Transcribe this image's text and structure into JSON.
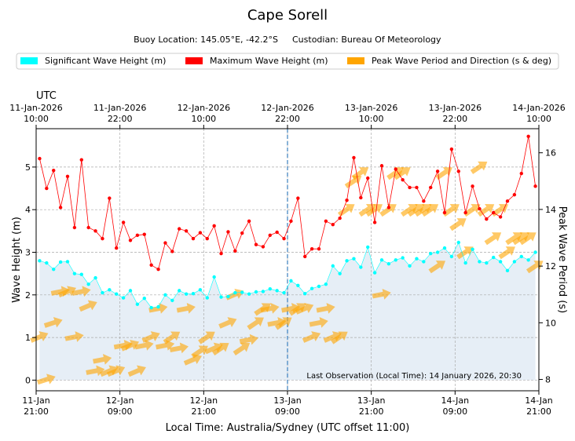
{
  "chart_data": {
    "type": "line",
    "title": "Cape Sorell",
    "subtitle_location": "Buoy Location: 145.05°E, -42.2°S",
    "subtitle_custodian": "Custodian: Bureau Of Meteorology",
    "legend": [
      {
        "label": "Significant Wave Height (m)",
        "color": "#00ffff"
      },
      {
        "label": "Maximum Wave Height (m)",
        "color": "#ff0000"
      },
      {
        "label": "Peak Wave Period and Direction (s & deg)",
        "color": "#ffa500"
      }
    ],
    "top_axis_title": "UTC",
    "top_ticks": [
      {
        "date": "11-Jan-2026",
        "time": "10:00"
      },
      {
        "date": "11-Jan-2026",
        "time": "22:00"
      },
      {
        "date": "12-Jan-2026",
        "time": "10:00"
      },
      {
        "date": "12-Jan-2026",
        "time": "22:00"
      },
      {
        "date": "13-Jan-2026",
        "time": "10:00"
      },
      {
        "date": "13-Jan-2026",
        "time": "22:00"
      },
      {
        "date": "14-Jan-2026",
        "time": "10:00"
      }
    ],
    "bottom_ticks": [
      {
        "date": "11-Jan",
        "time": "21:00"
      },
      {
        "date": "12-Jan",
        "time": "09:00"
      },
      {
        "date": "12-Jan",
        "time": "21:00"
      },
      {
        "date": "13-Jan",
        "time": "09:00"
      },
      {
        "date": "13-Jan",
        "time": "21:00"
      },
      {
        "date": "14-Jan",
        "time": "09:00"
      },
      {
        "date": "14-Jan",
        "time": "21:00"
      }
    ],
    "xlabel": "Local Time: Australia/Sydney (UTC offset 11:00)",
    "ylabel_left": "Wave Height (m)",
    "ylabel_right": "Peak Wave Period (s)",
    "x_unit": "hours after 11-Jan 21:00 local",
    "xlim": [
      0,
      72
    ],
    "ylim_left": [
      -0.25,
      5.9
    ],
    "ylim_right": [
      7.6,
      16.85
    ],
    "yticks_left": [
      0,
      1,
      2,
      3,
      4,
      5
    ],
    "yticks_right": [
      8,
      10,
      12,
      14,
      16
    ],
    "marker_line_x": 36,
    "last_observation": "Last Observation (Local Time): 14 January 2026, 20:30",
    "series": [
      {
        "name": "Significant Wave Height (m)",
        "color": "#00ffff",
        "x": [
          0.5,
          1.5,
          2.5,
          3.5,
          4.5,
          5.5,
          6.5,
          7.5,
          8.5,
          9.5,
          10.5,
          11.5,
          12.5,
          13.5,
          14.5,
          15.5,
          16.5,
          17.5,
          18.5,
          19.5,
          20.5,
          21.5,
          22.5,
          23.5,
          24.5,
          25.5,
          26.5,
          27.5,
          28.5,
          29.5,
          30.5,
          31.5,
          32.5,
          33.5,
          34.5,
          35.5,
          36.5,
          37.5,
          38.5,
          39.5,
          40.5,
          41.5,
          42.5,
          43.5,
          44.5,
          45.5,
          46.5,
          47.5,
          48.5,
          49.5,
          50.5,
          51.5,
          52.5,
          53.5,
          54.5,
          55.5,
          56.5,
          57.5,
          58.5,
          59.5,
          60.5,
          61.5,
          62.5,
          63.5,
          64.5,
          65.5,
          66.5,
          67.5,
          68.5,
          69.5,
          70.5,
          71.5
        ],
        "values": [
          2.8,
          2.75,
          2.6,
          2.77,
          2.78,
          2.5,
          2.48,
          2.25,
          2.4,
          2.05,
          2.12,
          2.02,
          1.93,
          2.1,
          1.78,
          1.92,
          1.7,
          1.72,
          2.0,
          1.87,
          2.1,
          2.02,
          2.03,
          2.12,
          1.93,
          2.42,
          1.95,
          1.96,
          2.05,
          2.06,
          2.02,
          2.07,
          2.08,
          2.14,
          2.1,
          2.05,
          2.33,
          2.22,
          2.03,
          2.15,
          2.2,
          2.25,
          2.68,
          2.5,
          2.8,
          2.85,
          2.65,
          3.12,
          2.52,
          2.82,
          2.73,
          2.82,
          2.87,
          2.68,
          2.85,
          2.78,
          2.97,
          3.0,
          3.1,
          2.9,
          3.23,
          2.75,
          3.07,
          2.78,
          2.75,
          2.88,
          2.78,
          2.57,
          2.78,
          2.9,
          2.82,
          3.0
        ]
      },
      {
        "name": "Maximum Wave Height (m)",
        "color": "#ff0000",
        "x": [
          0.5,
          1.5,
          2.5,
          3.5,
          4.5,
          5.5,
          6.5,
          7.5,
          8.5,
          9.5,
          10.5,
          11.5,
          12.5,
          13.5,
          14.5,
          15.5,
          16.5,
          17.5,
          18.5,
          19.5,
          20.5,
          21.5,
          22.5,
          23.5,
          24.5,
          25.5,
          26.5,
          27.5,
          28.5,
          29.5,
          30.5,
          31.5,
          32.5,
          33.5,
          34.5,
          35.5,
          36.5,
          37.5,
          38.5,
          39.5,
          40.5,
          41.5,
          42.5,
          43.5,
          44.5,
          45.5,
          46.5,
          47.5,
          48.5,
          49.5,
          50.5,
          51.5,
          52.5,
          53.5,
          54.5,
          55.5,
          56.5,
          57.5,
          58.5,
          59.5,
          60.5,
          61.5,
          62.5,
          63.5,
          64.5,
          65.5,
          66.5,
          67.5,
          68.5,
          69.5,
          70.5,
          71.5
        ],
        "values": [
          5.2,
          4.5,
          4.92,
          4.05,
          4.78,
          3.58,
          5.17,
          3.58,
          3.5,
          3.32,
          4.27,
          3.1,
          3.7,
          3.28,
          3.4,
          3.42,
          2.7,
          2.6,
          3.22,
          3.02,
          3.55,
          3.5,
          3.32,
          3.46,
          3.32,
          3.62,
          2.97,
          3.48,
          3.03,
          3.45,
          3.73,
          3.18,
          3.13,
          3.4,
          3.47,
          3.32,
          3.73,
          4.27,
          2.9,
          3.08,
          3.08,
          3.73,
          3.65,
          3.8,
          4.22,
          5.22,
          4.28,
          4.74,
          3.7,
          5.03,
          4.05,
          4.95,
          4.7,
          4.52,
          4.52,
          4.2,
          4.52,
          4.9,
          3.93,
          5.42,
          4.9,
          3.93,
          4.55,
          4.02,
          3.78,
          3.93,
          3.83,
          4.2,
          4.35,
          4.85,
          5.72,
          4.55
        ]
      }
    ],
    "peak_period_direction": {
      "name": "Peak Wave Period and Direction (s & deg)",
      "color": "#ffa500",
      "x": [
        0.5,
        1.5,
        2.5,
        3.5,
        4.5,
        5.5,
        6.5,
        7.5,
        8.5,
        9.5,
        10.5,
        11.5,
        12.5,
        13.5,
        14.5,
        15.5,
        16.5,
        17.5,
        18.5,
        19.5,
        20.5,
        21.5,
        22.5,
        23.5,
        24.5,
        25.5,
        26.5,
        27.5,
        28.5,
        29.5,
        30.5,
        31.5,
        32.5,
        33.5,
        34.5,
        35.5,
        36.5,
        37.5,
        38.5,
        39.5,
        40.5,
        41.5,
        42.5,
        43.5,
        44.5,
        45.5,
        46.5,
        47.5,
        48.5,
        49.5,
        50.5,
        51.5,
        52.5,
        53.5,
        54.5,
        55.5,
        56.5,
        57.5,
        58.5,
        59.5,
        60.5,
        61.5,
        62.5,
        63.5,
        64.5,
        65.5,
        66.5,
        67.5,
        68.5,
        69.5,
        70.5,
        71.5
      ],
      "period_s": [
        9.5,
        8.0,
        10.0,
        11.1,
        11.1,
        9.5,
        11.1,
        10.6,
        8.3,
        8.7,
        8.3,
        8.3,
        9.2,
        9.2,
        8.3,
        9.2,
        9.5,
        10.5,
        9.2,
        9.5,
        9.1,
        10.5,
        8.7,
        9.0,
        9.5,
        9.1,
        9.1,
        10.0,
        11.0,
        9.1,
        9.4,
        10.0,
        10.5,
        10.5,
        10.0,
        10.0,
        10.5,
        10.5,
        10.5,
        9.5,
        10.0,
        10.5,
        9.5,
        9.5,
        14.0,
        15.0,
        15.3,
        14.0,
        14.0,
        11.0,
        14.0,
        15.3,
        15.3,
        14.0,
        14.0,
        14.0,
        14.0,
        12.0,
        15.3,
        14.0,
        13.5,
        12.5,
        14.0,
        15.5,
        14.0,
        13.0,
        14.0,
        12.5,
        13.0,
        13.0,
        13.0,
        12.0
      ],
      "direction_deg": [
        247,
        252,
        252,
        259,
        247,
        259,
        259,
        247,
        259,
        259,
        247,
        247,
        259,
        247,
        247,
        259,
        247,
        259,
        259,
        236,
        259,
        259,
        247,
        236,
        236,
        247,
        236,
        247,
        247,
        236,
        259,
        236,
        236,
        259,
        259,
        236,
        259,
        236,
        247,
        247,
        259,
        259,
        247,
        236,
        236,
        236,
        236,
        236,
        236,
        259,
        236,
        236,
        236,
        236,
        236,
        236,
        236,
        236,
        236,
        236,
        236,
        236,
        236,
        236,
        236,
        236,
        236,
        236,
        236,
        236,
        236,
        236
      ]
    }
  }
}
